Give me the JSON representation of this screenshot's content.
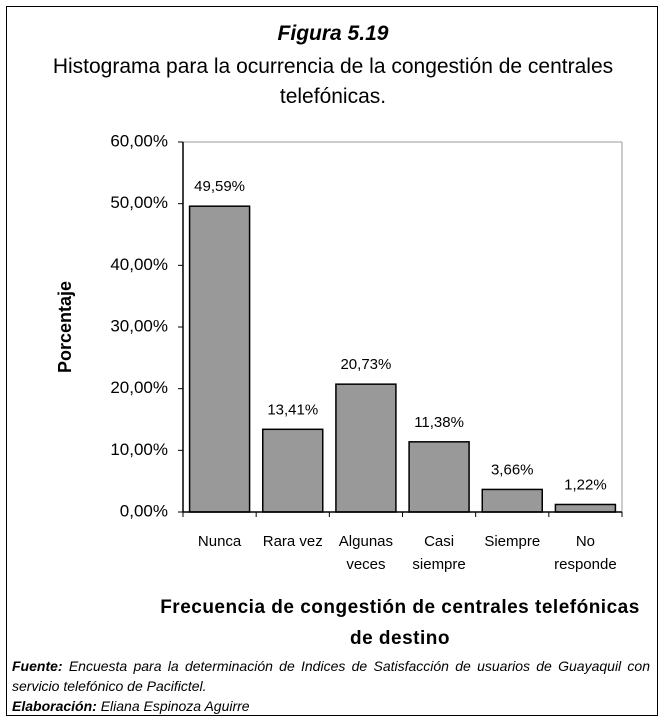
{
  "chart_data": {
    "type": "bar",
    "title": "Figura 5.19",
    "subtitle": "Histograma para la ocurrencia de la congestión de centrales telefónicas.",
    "categories": [
      "Nunca",
      "Rara vez",
      "Algunas\nveces",
      "Casi\nsiempre",
      "Siempre",
      "No\nresponde"
    ],
    "values": [
      49.59,
      13.41,
      20.73,
      11.38,
      3.66,
      1.22
    ],
    "value_labels": [
      "49,59%",
      "13,41%",
      "20,73%",
      "11,38%",
      "3,66%",
      "1,22%"
    ],
    "color": "#999999",
    "ylim": [
      0,
      60
    ],
    "yticks": [
      {
        "value": 0,
        "label": "0,00%"
      },
      {
        "value": 10,
        "label": "10,00%"
      },
      {
        "value": 20,
        "label": "20,00%"
      },
      {
        "value": 30,
        "label": "30,00%"
      },
      {
        "value": 40,
        "label": "40,00%"
      },
      {
        "value": 50,
        "label": "50,00%"
      },
      {
        "value": 60,
        "label": "60,00%"
      }
    ],
    "ylabel": "Porcentaje",
    "xlabel": "Frecuencia de congestión de centrales telefónicas de destino",
    "source_label": "Fuente:",
    "source": "Encuesta para la determinación de Indices de Satisfacción de usuarios de Guayaquil con servicio telefónico de Pacifictel.",
    "author_label": "Elaboración:",
    "author": "Eliana Espinoza Aguirre"
  }
}
